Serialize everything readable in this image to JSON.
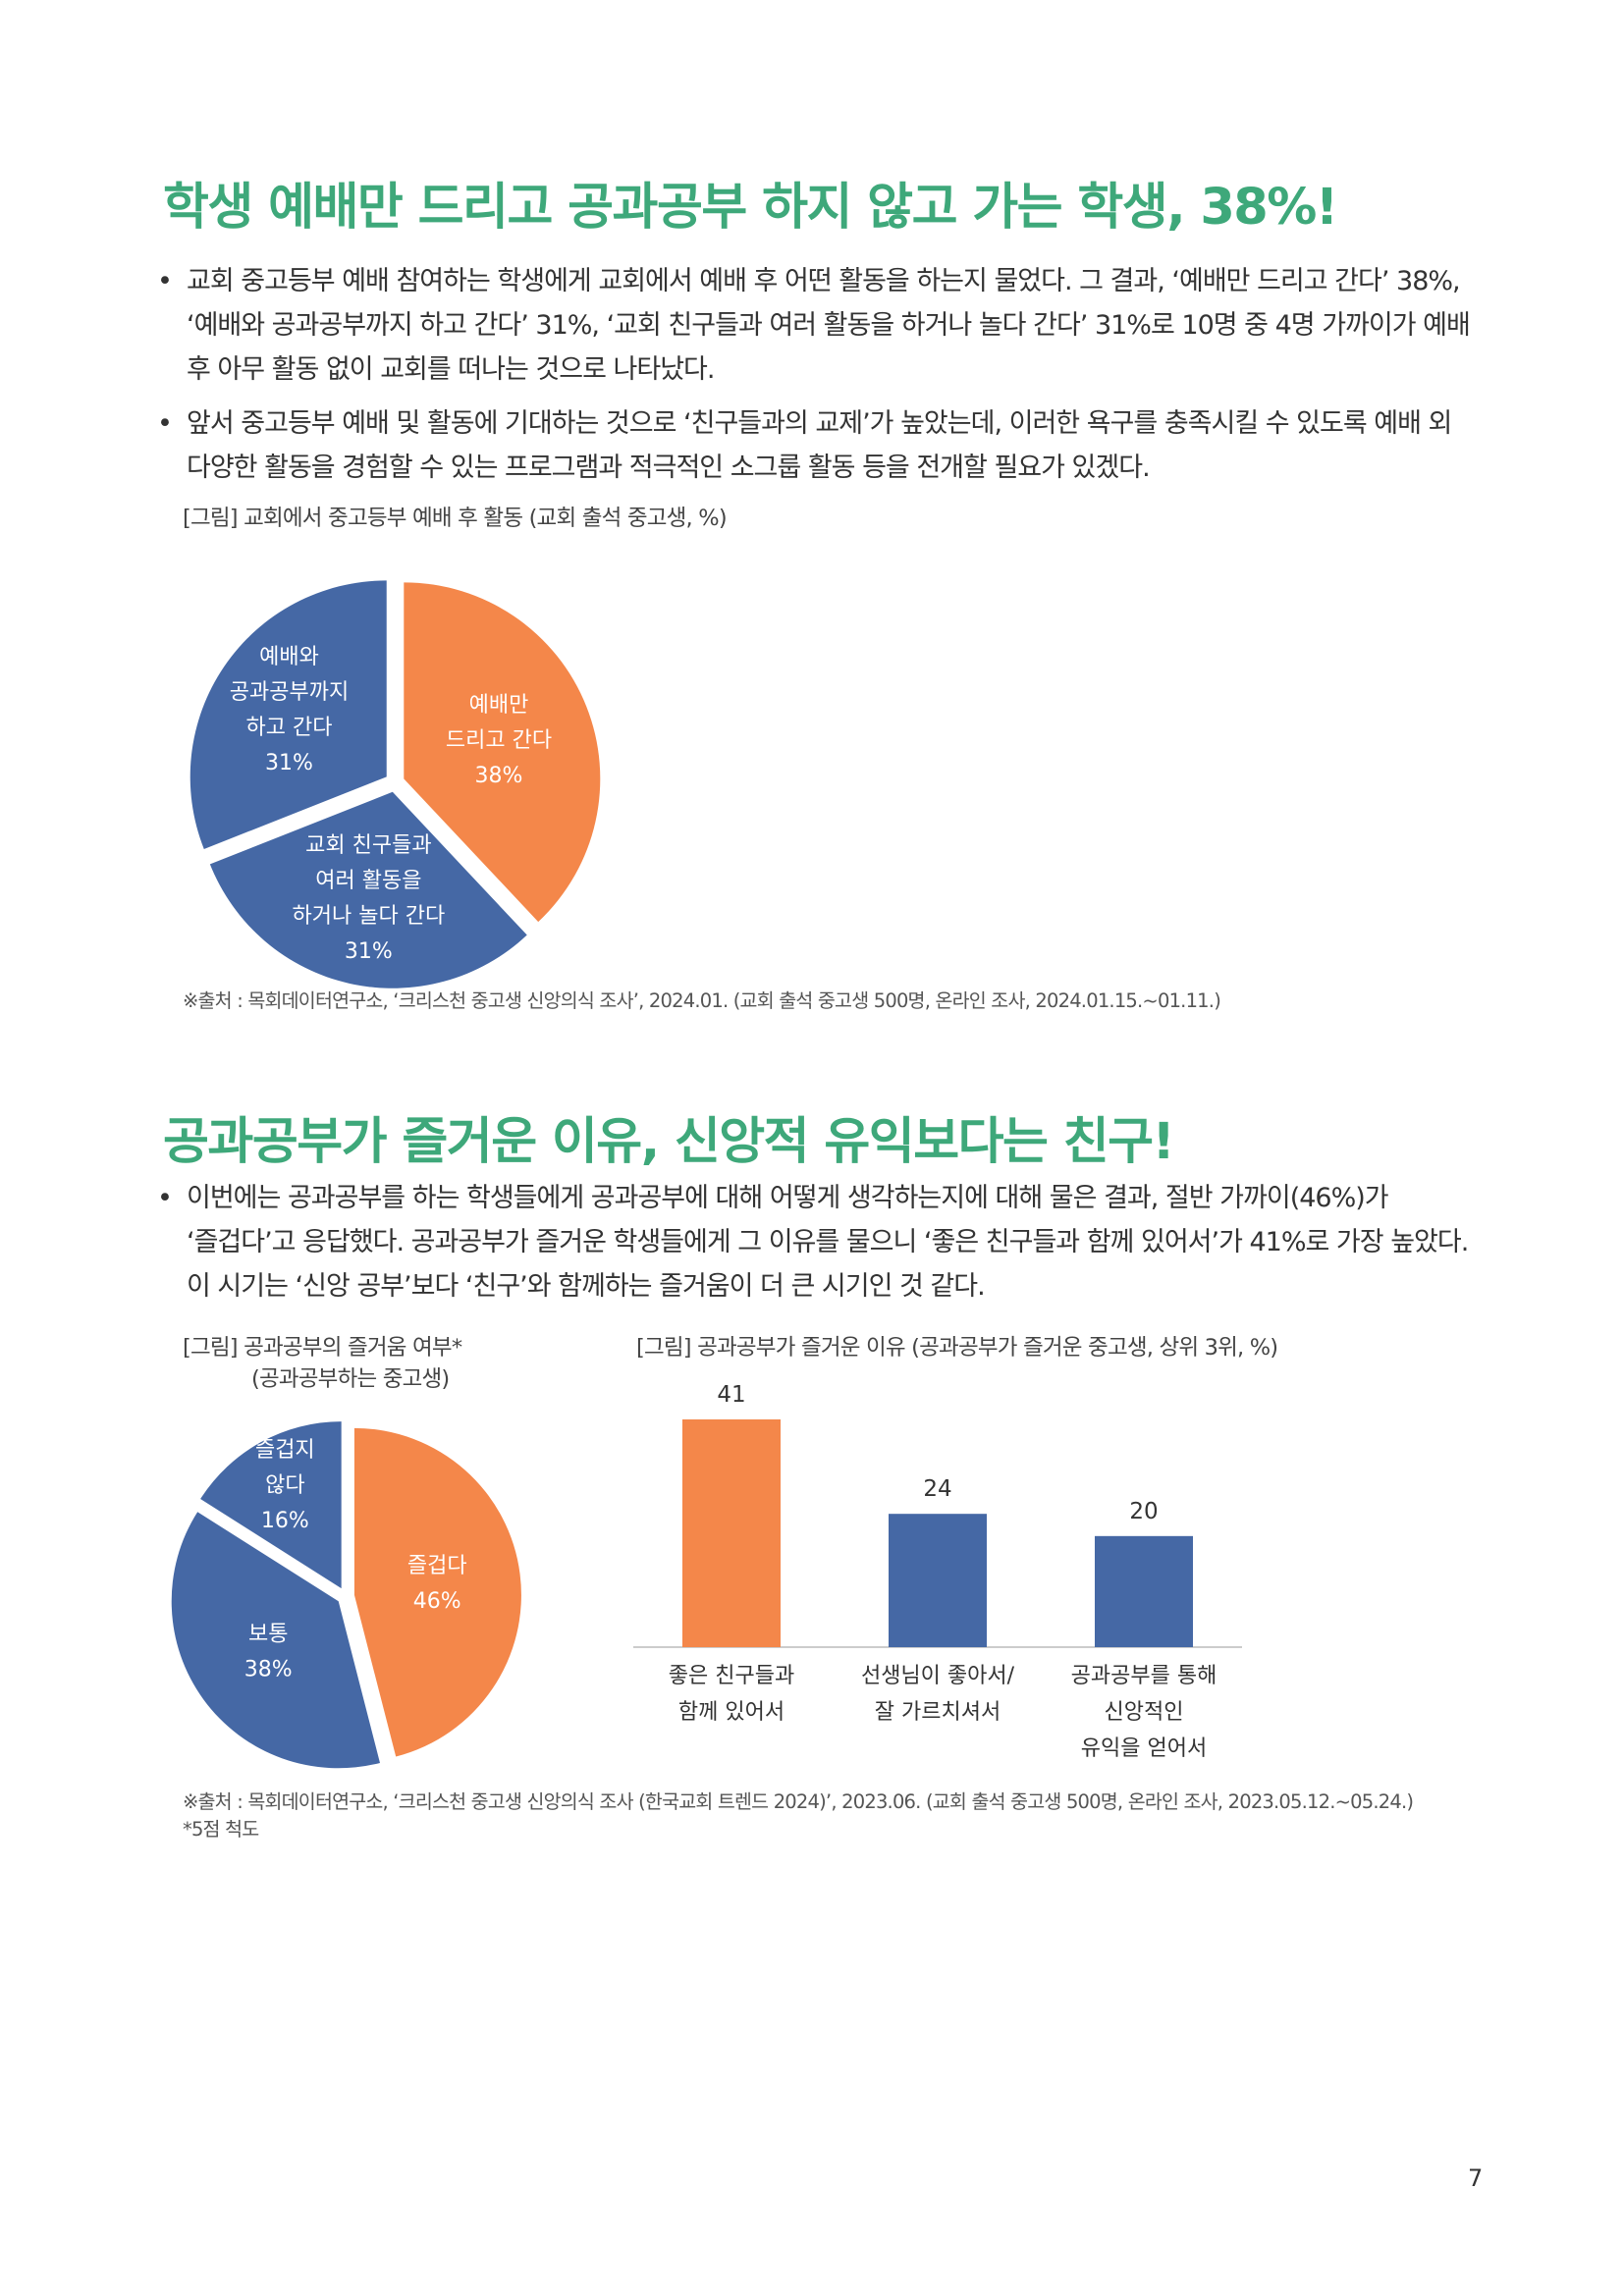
{
  "section1": {
    "title": "학생 예배만 드리고 공과공부 하지 않고 가는 학생, 38%!",
    "bullets": [
      "교회 중고등부 예배 참여하는 학생에게 교회에서 예배 후 어떤 활동을 하는지 물었다. 그 결과, ‘예배만 드리고 간다’ 38%, ‘예배와 공과공부까지 하고 간다’ 31%, ‘교회 친구들과 여러 활동을 하거나 놀다 간다’ 31%로 10명 중 4명 가까이가 예배 후 아무 활동 없이 교회를 떠나는 것으로 나타났다.",
      "앞서 중고등부 예배 및 활동에 기대하는 것으로 ‘친구들과의 교제’가 높았는데, 이러한 욕구를 충족시킬 수 있도록 예배 외 다양한 활동을 경험할 수 있는 프로그램과 적극적인 소그룹 활동 등을 전개할 필요가 있겠다."
    ],
    "figure_caption": "[그림] 교회에서 중고등부 예배 후 활동 (교회 출석 중고생, %)",
    "source": "※출처 : 목회데이터연구소, ‘크리스천 중고생 신앙의식 조사’, 2024.01. (교회 출석 중고생 500명, 온라인 조사, 2024.01.15.~01.11.)"
  },
  "section2": {
    "title": "공과공부가 즐거운 이유, 신앙적 유익보다는 친구!",
    "bullets": [
      "이번에는 공과공부를 하는 학생들에게 공과공부에 대해 어떻게 생각하는지에 대해 물은 결과, 절반 가까이(46%)가 ‘즐겁다’고 응답했다. 공과공부가 즐거운 학생들에게 그 이유를 물으니 ‘좋은 친구들과 함께 있어서’가 41%로 가장 높았다. 이 시기는 ‘신앙 공부’보다 ‘친구’와 함께하는 즐거움이 더 큰 시기인 것 같다."
    ],
    "figure1_caption_line1": "[그림] 공과공부의 즐거움 여부*",
    "figure1_caption_line2": "(공과공부하는 중고생)",
    "figure2_caption": "[그림] 공과공부가 즐거운 이유 (공과공부가 즐거운 중고생, 상위 3위, %)",
    "source": "※출처 : 목회데이터연구소, ‘크리스천 중고생 신앙의식 조사 (한국교회 트렌드 2024)’, 2023.06. (교회 출석 중고생 500명, 온라인 조사, 2023.05.12.~05.24.)",
    "note": "*5점 척도"
  },
  "page_number": "7",
  "colors": {
    "orange": "#f4874a",
    "blue": "#4568a5",
    "title_green": "#3ea87a"
  },
  "chart_data": [
    {
      "type": "pie",
      "title": "[그림] 교회에서 중고등부 예배 후 활동 (교회 출석 중고생, %)",
      "slices": [
        {
          "label_lines": [
            "예배만",
            "드리고 간다"
          ],
          "value": 38,
          "value_label": "38%",
          "color": "#f4874a"
        },
        {
          "label_lines": [
            "교회 친구들과",
            "여러 활동을",
            "하거나 놀다 간다"
          ],
          "value": 31,
          "value_label": "31%",
          "color": "#4568a5"
        },
        {
          "label_lines": [
            "예배와",
            "공과공부까지",
            "하고 간다"
          ],
          "value": 31,
          "value_label": "31%",
          "color": "#4568a5"
        }
      ]
    },
    {
      "type": "pie",
      "title": "[그림] 공과공부의 즐거움 여부* (공과공부하는 중고생)",
      "slices": [
        {
          "label_lines": [
            "즐겁다"
          ],
          "value": 46,
          "value_label": "46%",
          "color": "#f4874a"
        },
        {
          "label_lines": [
            "보통"
          ],
          "value": 38,
          "value_label": "38%",
          "color": "#4568a5"
        },
        {
          "label_lines": [
            "즐겁지",
            "않다"
          ],
          "value": 16,
          "value_label": "16%",
          "color": "#4568a5"
        }
      ]
    },
    {
      "type": "bar",
      "title": "[그림] 공과공부가 즐거운 이유 (공과공부가 즐거운 중고생, 상위 3위, %)",
      "categories": [
        [
          "좋은 친구들과",
          "함께 있어서"
        ],
        [
          "선생님이 좋아서/",
          "잘 가르치셔서"
        ],
        [
          "공과공부를 통해",
          "신앙적인",
          "유익을 얻어서"
        ]
      ],
      "values": [
        41,
        24,
        20
      ],
      "value_labels": [
        "41",
        "24",
        "20"
      ],
      "colors": [
        "#f4874a",
        "#4568a5",
        "#4568a5"
      ],
      "ylim": [
        0,
        41
      ]
    }
  ]
}
